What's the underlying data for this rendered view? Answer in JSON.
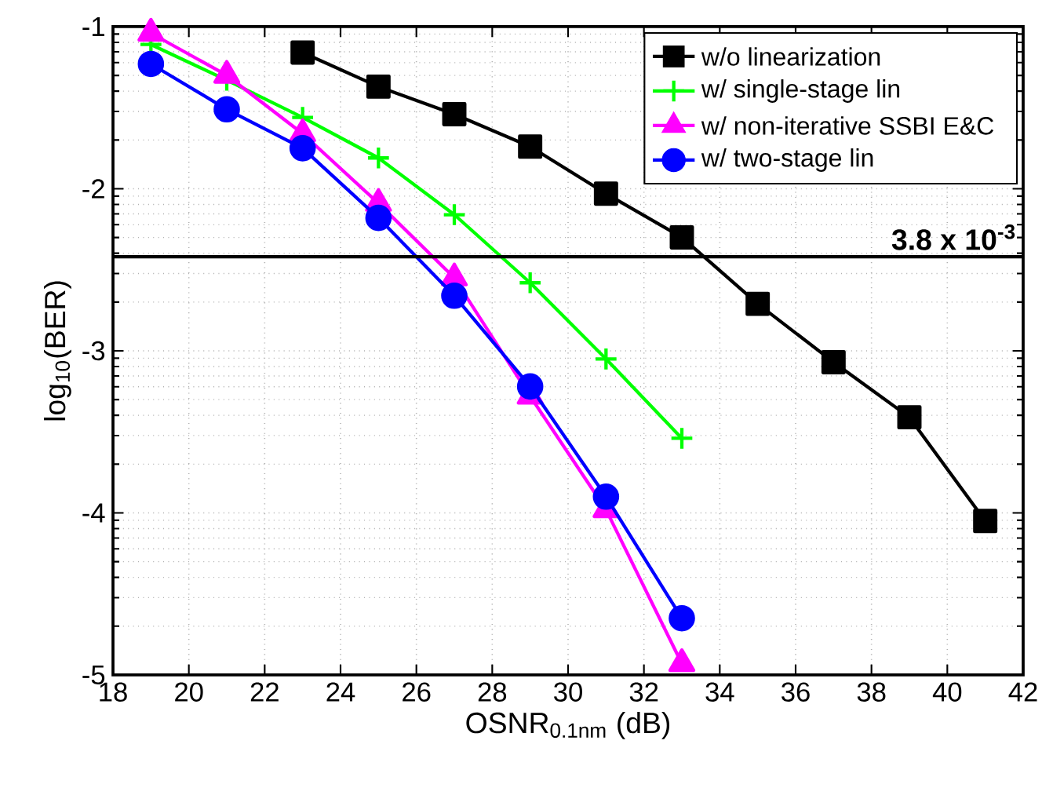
{
  "chart_data": {
    "type": "line",
    "xlabel": "OSNR$_{0.1nm}$ (dB)",
    "ylabel": "log$_{10}$(BER)",
    "xlim": [
      18,
      42
    ],
    "xticks": [
      18,
      20,
      22,
      24,
      26,
      28,
      30,
      32,
      34,
      36,
      38,
      40,
      42
    ],
    "ylim": [
      -5,
      -1
    ],
    "yticks": [
      -1,
      -2,
      -3,
      -4,
      -5
    ],
    "grid": true,
    "legend": "top right",
    "ref_lines": [
      {
        "axis": "y",
        "value": -2.42,
        "label": "3.8 x 10$^{-3}$",
        "color": "#000000"
      }
    ],
    "series": [
      {
        "name": "w/o linearization",
        "color": "#000000",
        "marker": "square",
        "x": [
          23,
          25,
          27,
          29,
          31,
          33,
          35,
          37,
          39,
          41
        ],
        "values": [
          -1.16,
          -1.37,
          -1.54,
          -1.74,
          -2.03,
          -2.3,
          -2.71,
          -3.07,
          -3.41,
          -4.05
        ]
      },
      {
        "name": "w/ single-stage lin",
        "color": "#00ff00",
        "marker": "cross",
        "x": [
          19,
          21,
          23,
          25,
          27,
          29,
          31,
          33
        ],
        "values": [
          -1.11,
          -1.33,
          -1.56,
          -1.81,
          -2.16,
          -2.58,
          -3.05,
          -3.54
        ]
      },
      {
        "name": "w/ non-iterative SSBI E&C",
        "color": "#ff00ff",
        "marker": "triangle",
        "x": [
          19,
          21,
          23,
          25,
          27,
          29,
          31,
          33
        ],
        "values": [
          -1.04,
          -1.3,
          -1.66,
          -2.09,
          -2.55,
          -3.28,
          -3.98,
          -4.93
        ]
      },
      {
        "name": "w/ two-stage lin",
        "color": "#0000ff",
        "marker": "circle",
        "x": [
          19,
          21,
          23,
          25,
          27,
          29,
          31,
          33
        ],
        "values": [
          -1.23,
          -1.51,
          -1.75,
          -2.18,
          -2.66,
          -3.22,
          -3.9,
          -4.65
        ]
      }
    ]
  }
}
